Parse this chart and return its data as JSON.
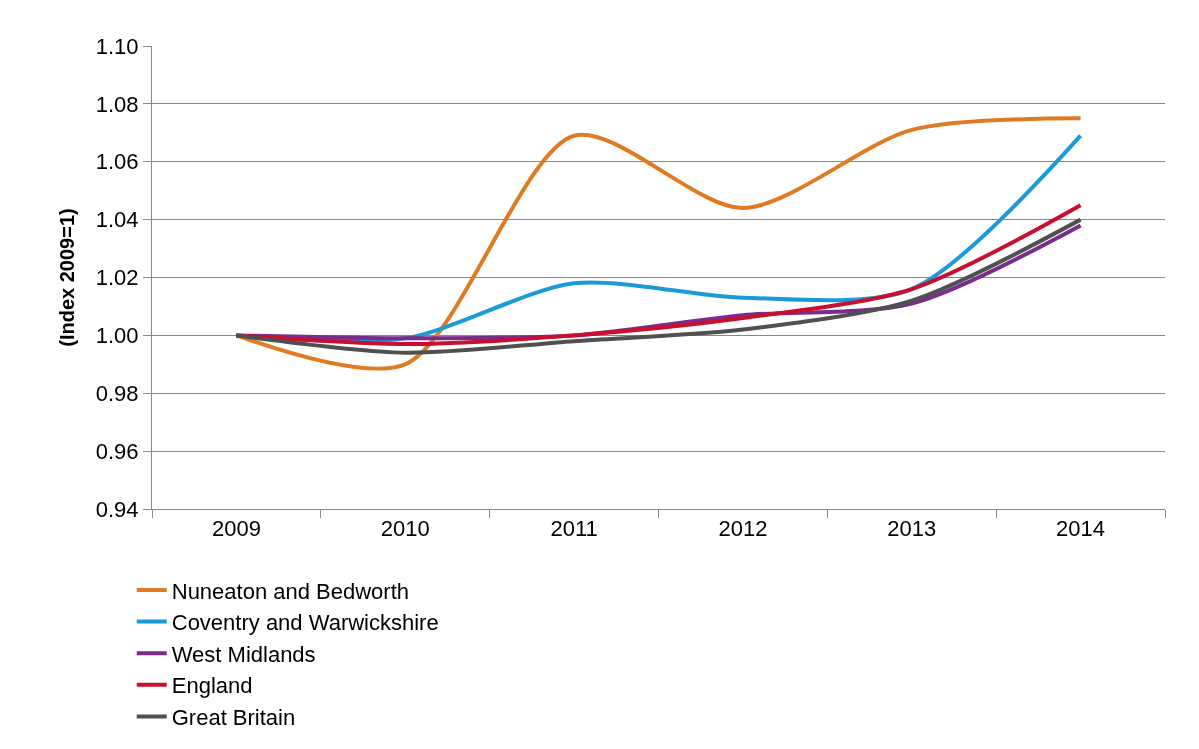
{
  "chart_data": {
    "type": "line",
    "ylabel": "(Index 2009=1)",
    "categories": [
      "2009",
      "2010",
      "2011",
      "2012",
      "2013",
      "2014"
    ],
    "series": [
      {
        "name": "Nuneaton and Bedworth",
        "color": "#e07b24",
        "values": [
          1.0,
          0.99,
          1.069,
          1.044,
          1.071,
          1.075
        ]
      },
      {
        "name": "Coventry and Warwickshire",
        "color": "#1a9ad6",
        "values": [
          1.0,
          0.999,
          1.018,
          1.013,
          1.016,
          1.069
        ]
      },
      {
        "name": "West Midlands",
        "color": "#7b2b8c",
        "values": [
          1.0,
          0.999,
          1.0,
          1.007,
          1.011,
          1.038
        ]
      },
      {
        "name": "England",
        "color": "#c8102e",
        "values": [
          1.0,
          0.997,
          1.0,
          1.006,
          1.016,
          1.045
        ]
      },
      {
        "name": "Great Britain",
        "color": "#505050",
        "values": [
          1.0,
          0.994,
          0.998,
          1.002,
          1.012,
          1.04
        ]
      }
    ],
    "ylim": [
      0.94,
      1.1
    ],
    "yticks": [
      {
        "value": 0.94,
        "label": "0.94"
      },
      {
        "value": 0.96,
        "label": "0.96"
      },
      {
        "value": 0.98,
        "label": "0.98"
      },
      {
        "value": 1.0,
        "label": "1.00"
      },
      {
        "value": 1.02,
        "label": "1.02"
      },
      {
        "value": 1.04,
        "label": "1.04"
      },
      {
        "value": 1.06,
        "label": "1.06"
      },
      {
        "value": 1.08,
        "label": "1.08"
      },
      {
        "value": 1.1,
        "label": "1.10"
      }
    ],
    "grid": "y",
    "legend": "bottom",
    "marker": "none",
    "line_style": "solid"
  }
}
